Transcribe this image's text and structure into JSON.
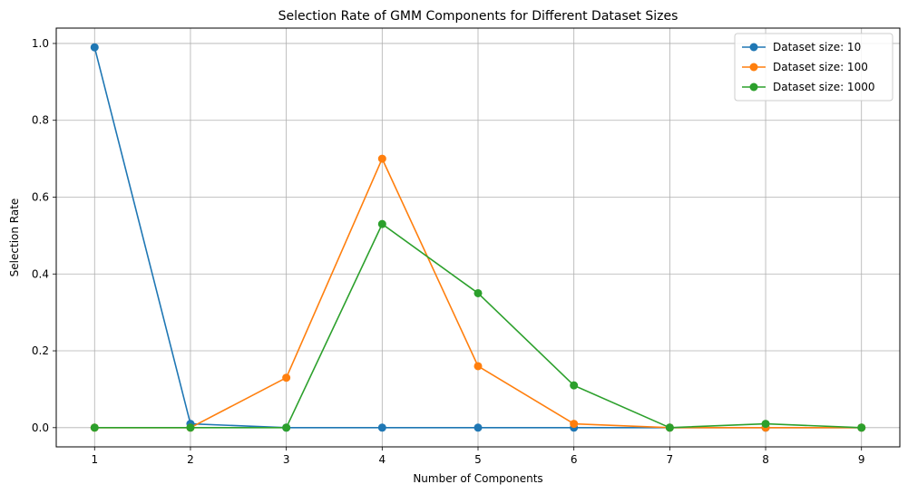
{
  "chart_data": {
    "type": "line",
    "title": "Selection Rate of GMM Components for Different Dataset Sizes",
    "xlabel": "Number of Components",
    "ylabel": "Selection Rate",
    "x": [
      1,
      2,
      3,
      4,
      5,
      6,
      7,
      8,
      9
    ],
    "xticks": [
      "1",
      "2",
      "3",
      "4",
      "5",
      "6",
      "7",
      "8",
      "9"
    ],
    "yticks": [
      "0.0",
      "0.2",
      "0.4",
      "0.6",
      "0.8",
      "1.0"
    ],
    "xlim": [
      0.6,
      9.4
    ],
    "ylim": [
      -0.05,
      1.04
    ],
    "grid": true,
    "legend_position": "top-right",
    "marker": "circle",
    "series": [
      {
        "name": "Dataset size: 10",
        "color": "#1f77b4",
        "values": [
          0.99,
          0.01,
          0.0,
          0.0,
          0.0,
          0.0,
          0.0,
          0.0,
          0.0
        ]
      },
      {
        "name": "Dataset size: 100",
        "color": "#ff7f0e",
        "values": [
          0.0,
          0.0,
          0.13,
          0.7,
          0.16,
          0.01,
          0.0,
          0.0,
          0.0
        ]
      },
      {
        "name": "Dataset size: 1000",
        "color": "#2ca02c",
        "values": [
          0.0,
          0.0,
          0.0,
          0.53,
          0.35,
          0.11,
          0.0,
          0.01,
          0.0
        ]
      }
    ]
  }
}
